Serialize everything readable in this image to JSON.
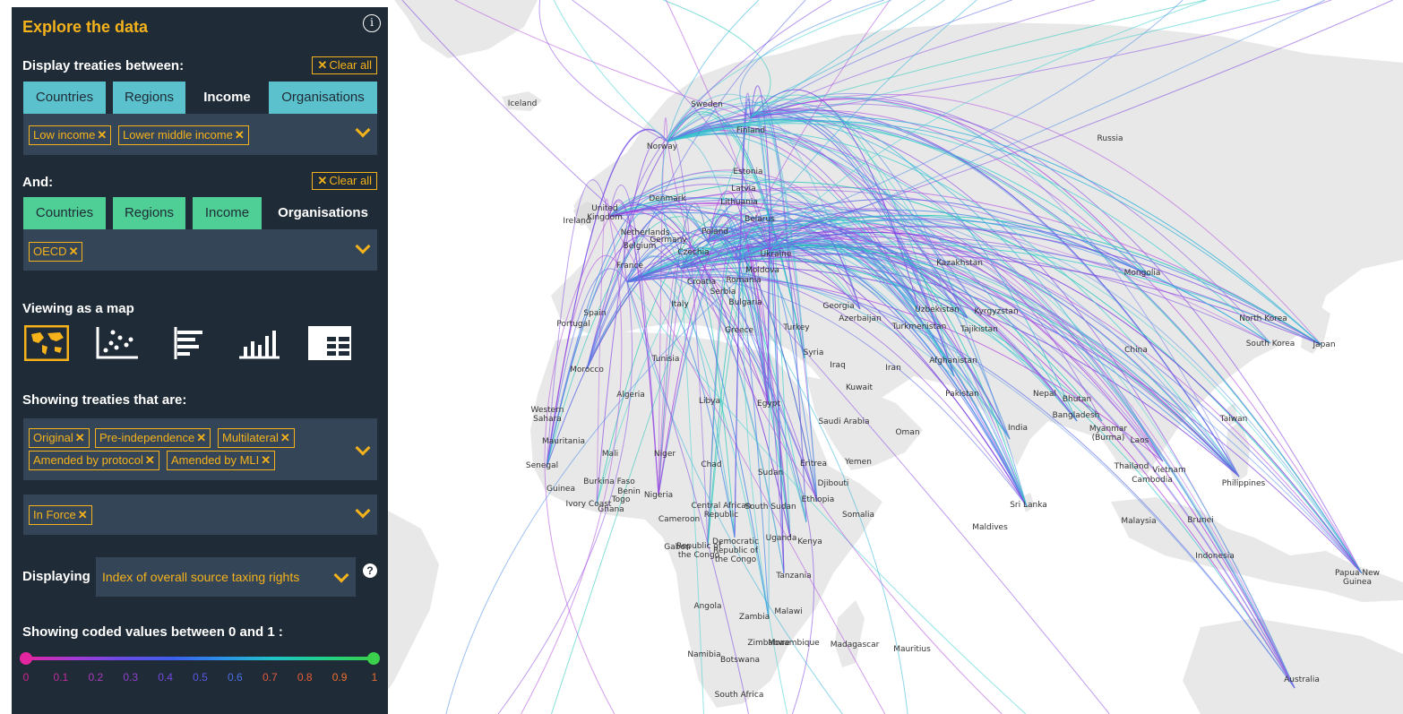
{
  "panel": {
    "title": "Explore the data",
    "info_icon": "i",
    "display_between_label": "Display treaties between:",
    "clear_all": "Clear all",
    "tabs1": [
      {
        "label": "Countries",
        "active": false
      },
      {
        "label": "Regions",
        "active": false
      },
      {
        "label": "Income",
        "active": true
      },
      {
        "label": "Organisations",
        "active": false
      }
    ],
    "chips1": [
      "Low income",
      "Lower middle income"
    ],
    "and_label": "And:",
    "tabs2": [
      {
        "label": "Countries",
        "active": false
      },
      {
        "label": "Regions",
        "active": false
      },
      {
        "label": "Income",
        "active": false
      },
      {
        "label": "Organisations",
        "active": true
      }
    ],
    "chips2": [
      "OECD"
    ],
    "viewing_label": "Viewing as a map",
    "view_icons": [
      "world-map-icon",
      "scatter-icon",
      "horizontal-bar-icon",
      "vertical-bar-icon",
      "table-icon"
    ],
    "showing_label": "Showing treaties that are:",
    "chips3": [
      "Original",
      "Pre-independence",
      "Multilateral",
      "Amended by protocol",
      "Amended by MLI"
    ],
    "chips4": [
      "In Force"
    ],
    "displaying_label": "Displaying",
    "displaying_value": "Index of overall source taxing rights",
    "help_icon": "?",
    "coded_label": "Showing coded values between 0 and 1 :",
    "ticks": [
      "0",
      "0.1",
      "0.2",
      "0.3",
      "0.4",
      "0.5",
      "0.6",
      "0.7",
      "0.8",
      "0.9",
      "1"
    ],
    "tick_colors": [
      "#d2238f",
      "#c12c9e",
      "#a93aba",
      "#9040cc",
      "#7548df",
      "#5a58e6",
      "#4a70e6",
      "#e05a3c",
      "#ea5a36",
      "#f07030",
      "#e66a32"
    ],
    "gradient_colors": [
      "#e2269f",
      "#3acf4c"
    ]
  },
  "map": {
    "labels": [
      {
        "text": "Iceland"
      },
      {
        "text": "Sweden"
      },
      {
        "text": "Finland"
      },
      {
        "text": "Norway"
      },
      {
        "text": "Russia"
      },
      {
        "text": "Estonia"
      },
      {
        "text": "Latvia"
      },
      {
        "text": "Lithuania"
      },
      {
        "text": "Denmark"
      },
      {
        "text": "United Kingdom"
      },
      {
        "text": "Ireland"
      },
      {
        "text": "Belarus"
      },
      {
        "text": "Netherlands"
      },
      {
        "text": "Belgium"
      },
      {
        "text": "Germany"
      },
      {
        "text": "Poland"
      },
      {
        "text": "Czechia"
      },
      {
        "text": "Ukraine"
      },
      {
        "text": "France"
      },
      {
        "text": "Moldova"
      },
      {
        "text": "Croatia"
      },
      {
        "text": "Romania"
      },
      {
        "text": "Serbia"
      },
      {
        "text": "Kazakhstan"
      },
      {
        "text": "Mongolia"
      },
      {
        "text": "Spain"
      },
      {
        "text": "Portugal"
      },
      {
        "text": "Italy"
      },
      {
        "text": "Bulgaria"
      },
      {
        "text": "Georgia"
      },
      {
        "text": "Uzbekistan"
      },
      {
        "text": "Kyrgyzstan"
      },
      {
        "text": "Azerbaijan"
      },
      {
        "text": "Turkmenistan"
      },
      {
        "text": "Tajikistan"
      },
      {
        "text": "North Korea"
      },
      {
        "text": "Turkey"
      },
      {
        "text": "Greece"
      },
      {
        "text": "South Korea"
      },
      {
        "text": "Japan"
      },
      {
        "text": "China"
      },
      {
        "text": "Syria"
      },
      {
        "text": "Tunisia"
      },
      {
        "text": "Iraq"
      },
      {
        "text": "Iran"
      },
      {
        "text": "Afghanistan"
      },
      {
        "text": "Morocco"
      },
      {
        "text": "Kuwait"
      },
      {
        "text": "Algeria"
      },
      {
        "text": "Libya"
      },
      {
        "text": "Egypt"
      },
      {
        "text": "Pakistan"
      },
      {
        "text": "Nepal"
      },
      {
        "text": "Bhutan"
      },
      {
        "text": "Western Sahara"
      },
      {
        "text": "Saudi Arabia"
      },
      {
        "text": "Bangladesh"
      },
      {
        "text": "Taiwan"
      },
      {
        "text": "India"
      },
      {
        "text": "Oman"
      },
      {
        "text": "Myanmar (Burma)"
      },
      {
        "text": "Mauritania"
      },
      {
        "text": "Laos"
      },
      {
        "text": "Mali"
      },
      {
        "text": "Niger"
      },
      {
        "text": "Eritrea"
      },
      {
        "text": "Yemen"
      },
      {
        "text": "Senegal"
      },
      {
        "text": "Chad"
      },
      {
        "text": "Thailand"
      },
      {
        "text": "Vietnam"
      },
      {
        "text": "Sudan"
      },
      {
        "text": "Djibouti"
      },
      {
        "text": "Cambodia"
      },
      {
        "text": "Philippines"
      },
      {
        "text": "Guinea"
      },
      {
        "text": "Burkina Faso"
      },
      {
        "text": "Benin"
      },
      {
        "text": "Nigeria"
      },
      {
        "text": "Ethiopia"
      },
      {
        "text": "Togo"
      },
      {
        "text": "Ivory Coast"
      },
      {
        "text": "Ghana"
      },
      {
        "text": "Central African Republic"
      },
      {
        "text": "South Sudan"
      },
      {
        "text": "Sri Lanka"
      },
      {
        "text": "Somalia"
      },
      {
        "text": "Cameroon"
      },
      {
        "text": "Malaysia"
      },
      {
        "text": "Brunei"
      },
      {
        "text": "Maldives"
      },
      {
        "text": "Uganda"
      },
      {
        "text": "Kenya"
      },
      {
        "text": "Republic of the Congo"
      },
      {
        "text": "Democratic Republic of the Congo"
      },
      {
        "text": "Gabon"
      },
      {
        "text": "Indonesia"
      },
      {
        "text": "Tanzania"
      },
      {
        "text": "Papua New Guinea"
      },
      {
        "text": "Angola"
      },
      {
        "text": "Malawi"
      },
      {
        "text": "Zambia"
      },
      {
        "text": "Mozambique"
      },
      {
        "text": "Madagascar"
      },
      {
        "text": "Mauritius"
      },
      {
        "text": "Zimbabwe"
      },
      {
        "text": "Namibia"
      },
      {
        "text": "Botswana"
      },
      {
        "text": "South Africa"
      },
      {
        "text": "Australia"
      }
    ]
  }
}
